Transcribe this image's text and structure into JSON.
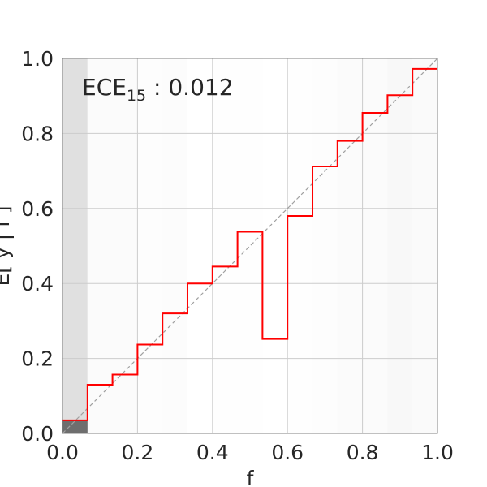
{
  "chart_data": {
    "type": "line",
    "xlabel": "f",
    "ylabel": "E[ y | f ]",
    "xlim": [
      0.0,
      1.0
    ],
    "ylim": [
      0.0,
      1.0
    ],
    "x_ticks": [
      "0.0",
      "0.2",
      "0.4",
      "0.6",
      "0.8",
      "1.0"
    ],
    "y_ticks": [
      "0.0",
      "0.2",
      "0.4",
      "0.6",
      "0.8",
      "1.0"
    ],
    "grid": true,
    "annotation": {
      "main": "ECE",
      "sub": "15",
      "tail": " : 0.012"
    },
    "bins": {
      "edges": [
        0.0,
        0.0667,
        0.1333,
        0.2,
        0.2667,
        0.3333,
        0.4,
        0.4667,
        0.5333,
        0.6,
        0.6667,
        0.7333,
        0.8,
        0.8667,
        0.9333,
        1.0
      ],
      "accuracy": [
        0.035,
        0.13,
        0.157,
        0.237,
        0.32,
        0.4,
        0.445,
        0.538,
        0.252,
        0.58,
        0.712,
        0.78,
        0.855,
        0.902,
        0.972
      ],
      "bin_shade": [
        0.52,
        0.06,
        0.06,
        0.04,
        0.05,
        0.0,
        0.01,
        0.01,
        0.0,
        0.02,
        0.03,
        0.06,
        0.07,
        0.12,
        0.09
      ],
      "accuracy_bar_color": "#6e6e6e"
    },
    "reliability_color": "#ff0000",
    "diagonal_color": "#a0a0a0",
    "grid_color": "#cccccc",
    "frame_color": "#808080"
  }
}
